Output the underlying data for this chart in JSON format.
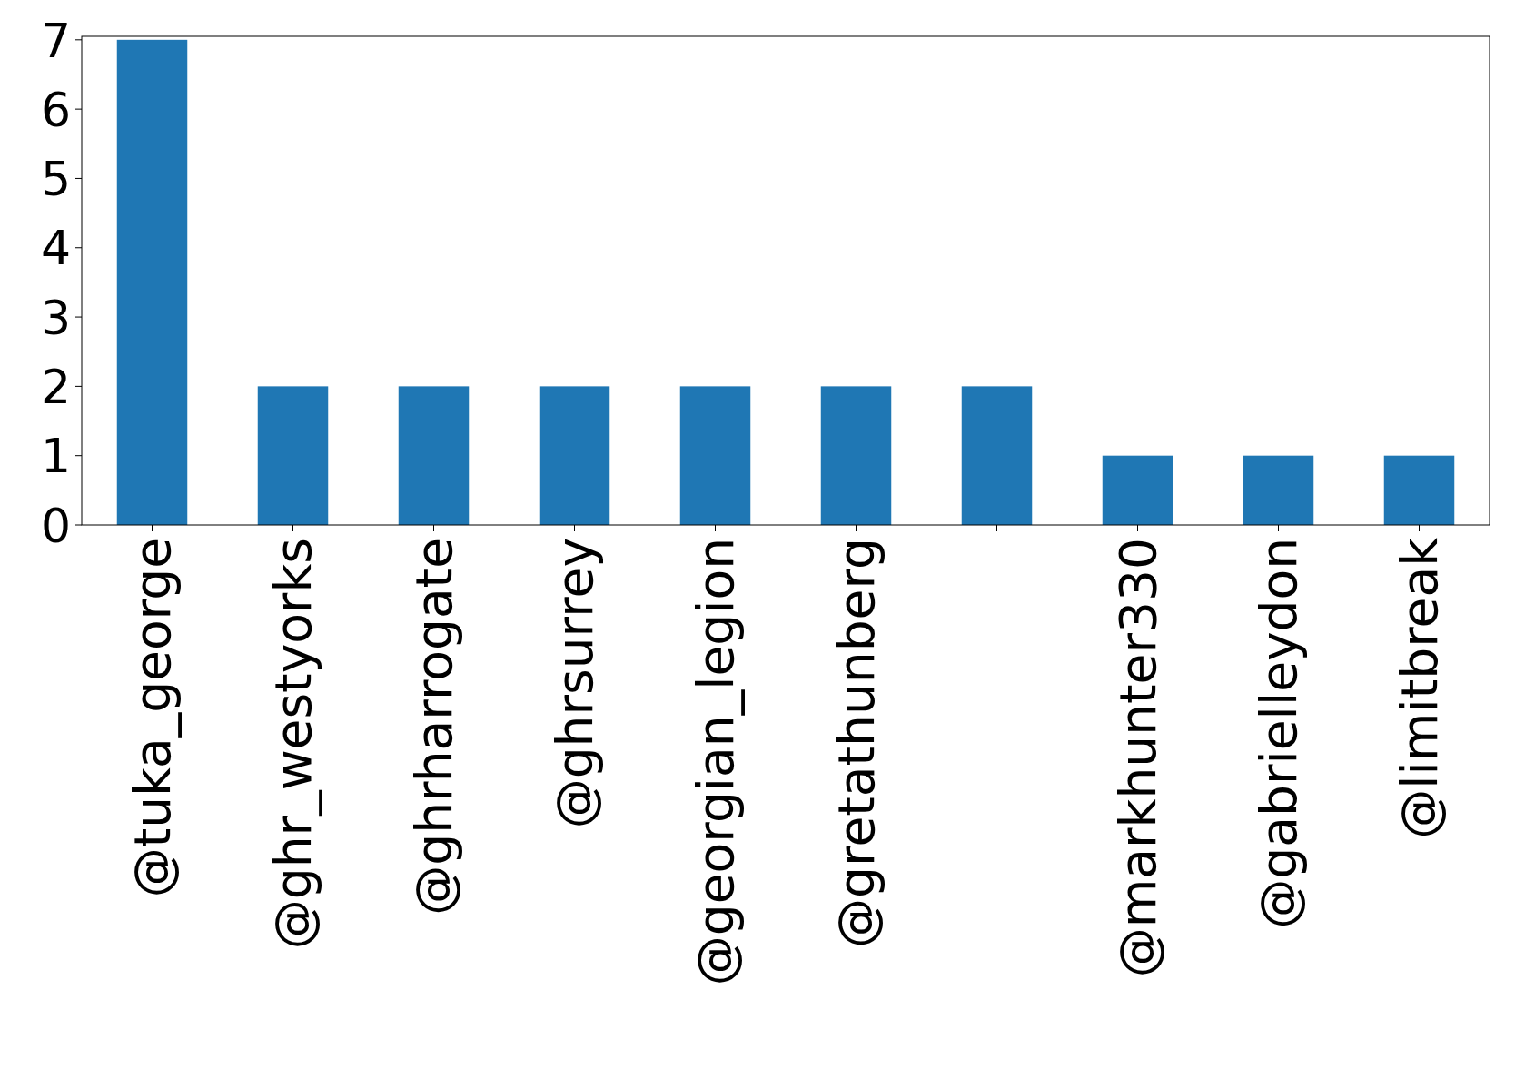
{
  "chart_data": {
    "type": "bar",
    "categories": [
      "@tuka_george",
      "@ghr_westyorks",
      "@ghrharrogate",
      "@ghrsurrey",
      "@georgian_legion",
      "@gretathunberg",
      null,
      "@markhunter330",
      "@gabrielleydon",
      "@limitbreak"
    ],
    "values": [
      7,
      2,
      2,
      2,
      2,
      2,
      2,
      1,
      1,
      1
    ],
    "color": "#1f77b4",
    "ylim": [
      0,
      7.05
    ],
    "yticks": [
      0,
      1,
      2,
      3,
      4,
      5,
      6,
      7
    ],
    "grid": false
  }
}
